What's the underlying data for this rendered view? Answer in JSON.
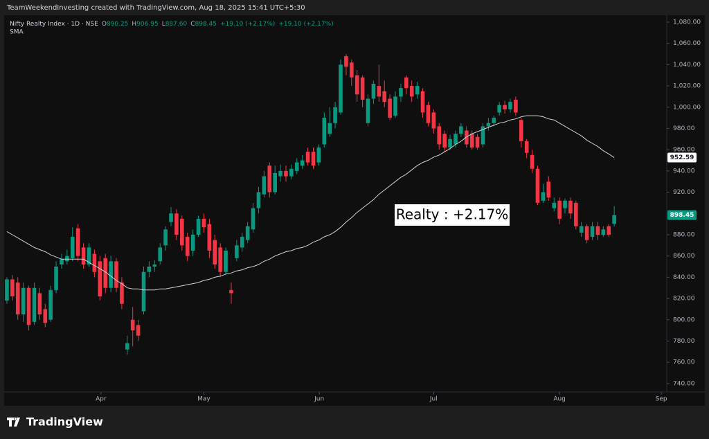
{
  "chart_data": {
    "type": "candlestick",
    "header": "TeamWeekendInvesting created with TradingView.com, Aug 18, 2025 15:41 UTC+5:30",
    "title": "Nifty Realty Index · 1D · NSE",
    "legend": [
      {
        "label": "O",
        "value": "890.25"
      },
      {
        "label": "H",
        "value": "906.95"
      },
      {
        "label": "L",
        "value": "887.60"
      },
      {
        "label": "C",
        "value": "898.45"
      },
      {
        "label": "",
        "value": "+19.10 (+2.17%)"
      },
      {
        "label": "",
        "value": "+19.10 (+2.17%)"
      }
    ],
    "annotation": "Realty : +2.17%",
    "brand": "TradingView",
    "up_color": "#089981",
    "down_color": "#f23645",
    "open": [
      818,
      838,
      835,
      805,
      830,
      798,
      825,
      810,
      800,
      828,
      852,
      855,
      858,
      886,
      868,
      852,
      862,
      855,
      858,
      830,
      855,
      835,
      772,
      800,
      795,
      808,
      845,
      850,
      855,
      870,
      892,
      900,
      895,
      878,
      865,
      880,
      895,
      890,
      875,
      868,
      845,
      828,
      858,
      868,
      875,
      885,
      905,
      918,
      945,
      920,
      935,
      940,
      935,
      940,
      945,
      958,
      958,
      948,
      965,
      975,
      985,
      995,
      1048,
      1042,
      1030,
      1028,
      985,
      1008,
      1020,
      1015,
      1008,
      992,
      1010,
      1028,
      1020,
      1012,
      1015,
      1002,
      995,
      982,
      975,
      962,
      965,
      975,
      978,
      975,
      972,
      965,
      982,
      985,
      995,
      1002,
      998,
      1007,
      988,
      968,
      955,
      942,
      912,
      930,
      905,
      912,
      905,
      912,
      910,
      882,
      888,
      878,
      888,
      880,
      888,
      890.25
    ],
    "high": [
      840,
      842,
      840,
      835,
      832,
      835,
      830,
      815,
      832,
      855,
      862,
      866,
      887,
      890,
      872,
      872,
      866,
      860,
      862,
      860,
      858,
      840,
      785,
      812,
      800,
      850,
      855,
      856,
      872,
      888,
      906,
      904,
      898,
      882,
      885,
      898,
      900,
      895,
      880,
      872,
      868,
      835,
      875,
      882,
      892,
      910,
      925,
      940,
      948,
      945,
      946,
      945,
      946,
      952,
      955,
      962,
      962,
      965,
      995,
      1000,
      1005,
      1045,
      1050,
      1045,
      1035,
      1030,
      1012,
      1025,
      1040,
      1025,
      1012,
      1015,
      1022,
      1030,
      1025,
      1024,
      1018,
      1005,
      998,
      985,
      978,
      974,
      978,
      985,
      982,
      978,
      975,
      985,
      990,
      992,
      1005,
      1006,
      1008,
      1010,
      990,
      970,
      960,
      945,
      928,
      935,
      915,
      915,
      914,
      915,
      912,
      892,
      890,
      892,
      892,
      888,
      890,
      906.95
    ],
    "low": [
      815,
      818,
      800,
      798,
      790,
      795,
      800,
      793,
      798,
      825,
      848,
      852,
      855,
      855,
      848,
      850,
      840,
      818,
      825,
      826,
      826,
      810,
      767,
      775,
      780,
      805,
      840,
      845,
      852,
      865,
      888,
      875,
      865,
      855,
      860,
      878,
      882,
      858,
      848,
      840,
      842,
      815,
      855,
      864,
      872,
      882,
      900,
      915,
      915,
      918,
      930,
      930,
      932,
      937,
      942,
      945,
      942,
      945,
      962,
      972,
      980,
      993,
      1030,
      1020,
      1005,
      1000,
      982,
      1003,
      1005,
      1000,
      988,
      990,
      1005,
      1012,
      1005,
      1008,
      990,
      982,
      975,
      960,
      958,
      960,
      962,
      972,
      962,
      960,
      960,
      962,
      978,
      982,
      992,
      994,
      995,
      992,
      962,
      952,
      938,
      908,
      910,
      912,
      902,
      890,
      900,
      895,
      885,
      878,
      872,
      875,
      875,
      878,
      878,
      887.6
    ],
    "close": [
      838,
      822,
      805,
      830,
      795,
      830,
      805,
      797,
      828,
      850,
      857,
      860,
      878,
      860,
      852,
      868,
      845,
      822,
      830,
      855,
      830,
      815,
      778,
      790,
      785,
      845,
      850,
      852,
      868,
      885,
      900,
      880,
      870,
      860,
      880,
      895,
      887,
      865,
      852,
      845,
      865,
      825,
      870,
      878,
      888,
      905,
      920,
      935,
      920,
      938,
      940,
      935,
      942,
      948,
      950,
      948,
      945,
      962,
      990,
      985,
      1000,
      1040,
      1038,
      1028,
      1012,
      1007,
      1008,
      1022,
      1010,
      1005,
      990,
      1010,
      1018,
      1018,
      1010,
      1020,
      995,
      985,
      980,
      965,
      962,
      970,
      975,
      982,
      965,
      962,
      962,
      982,
      985,
      990,
      1002,
      998,
      1005,
      995,
      968,
      957,
      942,
      910,
      920,
      915,
      910,
      895,
      912,
      900,
      888,
      888,
      875,
      888,
      880,
      885,
      880,
      898.45
    ],
    "sma": {
      "name": "SMA",
      "color": "#d1d4dc",
      "values": [
        883,
        880,
        877,
        874,
        871,
        868,
        866,
        864,
        861,
        859,
        857,
        857,
        857,
        857,
        857,
        854,
        851,
        848,
        845,
        841,
        837,
        834,
        830,
        829,
        829,
        828,
        828,
        828,
        829,
        829,
        830,
        831,
        832,
        833,
        834,
        835,
        837,
        838,
        840,
        841,
        843,
        844,
        846,
        847,
        849,
        850,
        852,
        855,
        857,
        860,
        862,
        864,
        865,
        867,
        868,
        870,
        873,
        875,
        878,
        880,
        883,
        887,
        892,
        896,
        901,
        905,
        909,
        913,
        918,
        922,
        926,
        930,
        934,
        937,
        941,
        945,
        948,
        950,
        953,
        955,
        958,
        961,
        965,
        968,
        972,
        975,
        977,
        979,
        981,
        983,
        985,
        986,
        988,
        989,
        991,
        992,
        992,
        992,
        991,
        989,
        988,
        985,
        982,
        979,
        976,
        973,
        969,
        966,
        963,
        959,
        956,
        952.59
      ]
    },
    "price_labels": [
      {
        "value": 952.59,
        "label": "952.59",
        "color": "#ffffff",
        "text_color": "#131722"
      },
      {
        "value": 898.45,
        "label": "898.45",
        "color": "#089981",
        "text_color": "#ffffff"
      }
    ],
    "xlim": [
      -0.5,
      120.6
    ],
    "xticks": [
      {
        "value": 17.2,
        "label": "Apr"
      },
      {
        "value": 36,
        "label": "May"
      },
      {
        "value": 57.1,
        "label": "Jun"
      },
      {
        "value": 78,
        "label": "Jul"
      },
      {
        "value": 101,
        "label": "Aug"
      },
      {
        "value": 119.6,
        "label": "Sep"
      }
    ],
    "ylim": [
      732.1,
      1086.5
    ],
    "yticks": [
      {
        "value": 740,
        "label": "740.00"
      },
      {
        "value": 760,
        "label": "760.00"
      },
      {
        "value": 780,
        "label": "780.00"
      },
      {
        "value": 800,
        "label": "800.00"
      },
      {
        "value": 820,
        "label": "820.00"
      },
      {
        "value": 840,
        "label": "840.00"
      },
      {
        "value": 860,
        "label": "860.00"
      },
      {
        "value": 880,
        "label": "880.00"
      },
      {
        "value": 900,
        "label": "900.00"
      },
      {
        "value": 920,
        "label": "920.00"
      },
      {
        "value": 940,
        "label": "940.00"
      },
      {
        "value": 960,
        "label": "960.00"
      },
      {
        "value": 980,
        "label": "980.00"
      },
      {
        "value": 1000,
        "label": "1,000.00"
      },
      {
        "value": 1020,
        "label": "1,020.00"
      },
      {
        "value": 1040,
        "label": "1,040.00"
      },
      {
        "value": 1060,
        "label": "1,060.00"
      },
      {
        "value": 1080,
        "label": "1,080.00"
      }
    ],
    "grid": false
  }
}
